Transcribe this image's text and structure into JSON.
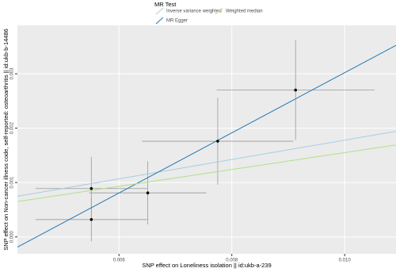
{
  "chart_data": {
    "type": "mr-scatter",
    "legend_title": "MR Test",
    "x_label": "SNP effect on Loneliness  isolation || id:ukb-a-239",
    "y_label": "SNP effect on Non-cancer illness code, self-reported: osteoarthritis || id:ukb-b-14486",
    "xlim": [
      0.0042,
      0.01091
    ],
    "ylim": [
      -0.00031,
      0.00389
    ],
    "xticks": [
      0.006,
      0.008,
      {
        "value": 0.01,
        "label": "0.010"
      }
    ],
    "yticks": [
      {
        "value": 0,
        "label": "0.000"
      },
      0.001,
      0.002,
      0.003
    ],
    "grid": true,
    "points": {
      "x": [
        0.00551,
        0.00551,
        0.00651,
        0.00775,
        0.00913
      ],
      "y": [
        0.00089,
        0.00032,
        0.00081,
        0.00176,
        0.0027
      ],
      "x_se": [
        0.00099,
        0.00099,
        0.00104,
        0.00134,
        0.0014
      ],
      "y_se": [
        0.00058,
        0.0004,
        0.00058,
        0.0008,
        0.00092
      ],
      "color": "#000000"
    },
    "lines": [
      {
        "name": "Inverse variance weighted",
        "color": "#a6cee3",
        "slope": 0.178,
        "intercept": 0
      },
      {
        "name": "MR Egger",
        "color": "#1f78b4",
        "slope": 0.553,
        "intercept": -0.00251
      },
      {
        "name": "Weighted median",
        "color": "#b2df8a",
        "slope": 0.155,
        "intercept": 0
      }
    ]
  }
}
